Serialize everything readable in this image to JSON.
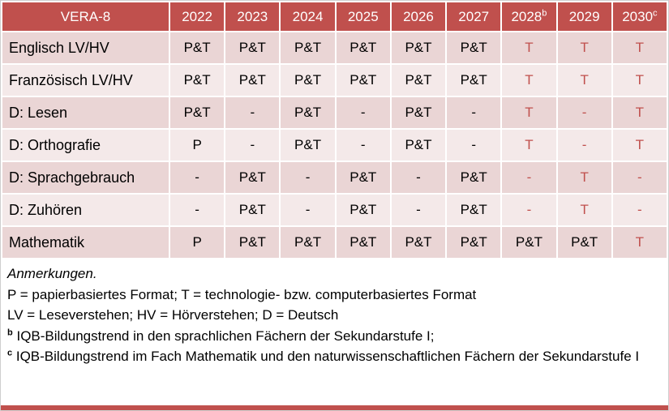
{
  "title": "VERA-8",
  "colors": {
    "header_bg": "#C0504D",
    "header_text": "#FFFFFF",
    "band_dark": "#EAD5D5",
    "band_light": "#F4E9E9",
    "red_text": "#C0504D",
    "body_text": "#000000"
  },
  "table": {
    "columns": [
      {
        "label": "2022",
        "sup": ""
      },
      {
        "label": "2023",
        "sup": ""
      },
      {
        "label": "2024",
        "sup": ""
      },
      {
        "label": "2025",
        "sup": ""
      },
      {
        "label": "2026",
        "sup": ""
      },
      {
        "label": "2027",
        "sup": ""
      },
      {
        "label": "2028",
        "sup": "b"
      },
      {
        "label": "2029",
        "sup": ""
      },
      {
        "label": "2030",
        "sup": "c"
      }
    ],
    "rows": [
      {
        "label": "Englisch LV/HV",
        "values": [
          "P&T",
          "P&T",
          "P&T",
          "P&T",
          "P&T",
          "P&T",
          "T",
          "T",
          "T"
        ]
      },
      {
        "label": "Französisch LV/HV",
        "values": [
          "P&T",
          "P&T",
          "P&T",
          "P&T",
          "P&T",
          "P&T",
          "T",
          "T",
          "T"
        ]
      },
      {
        "label": "D: Lesen",
        "values": [
          "P&T",
          "-",
          "P&T",
          "-",
          "P&T",
          "-",
          "T",
          "-",
          "T"
        ]
      },
      {
        "label": "D: Orthografie",
        "values": [
          "P",
          "-",
          "P&T",
          "-",
          "P&T",
          "-",
          "T",
          "-",
          "T"
        ]
      },
      {
        "label": "D: Sprachgebrauch",
        "values": [
          "-",
          "P&T",
          "-",
          "P&T",
          "-",
          "P&T",
          "-",
          "T",
          "-"
        ]
      },
      {
        "label": "D: Zuhören",
        "values": [
          "-",
          "P&T",
          "-",
          "P&T",
          "-",
          "P&T",
          "-",
          "T",
          "-"
        ]
      },
      {
        "label": "Mathematik",
        "values": [
          "P",
          "P&T",
          "P&T",
          "P&T",
          "P&T",
          "P&T",
          "P&T",
          "P&T",
          "T"
        ]
      }
    ],
    "red_from_column_index": 6
  },
  "notes": {
    "heading": "Anmerkungen.",
    "lines": [
      {
        "sup": "",
        "text": "P = papierbasiertes Format; T = technologie- bzw. computerbasiertes Format"
      },
      {
        "sup": "",
        "text": "LV = Leseverstehen; HV = Hörverstehen; D = Deutsch"
      },
      {
        "sup": "b",
        "text": "IQB-Bildungstrend in den sprachlichen Fächern der Sekundarstufe I;"
      },
      {
        "sup": "c",
        "text": "IQB-Bildungstrend im Fach Mathematik und den naturwissenschaftlichen Fächern der Sekundarstufe I"
      }
    ]
  }
}
